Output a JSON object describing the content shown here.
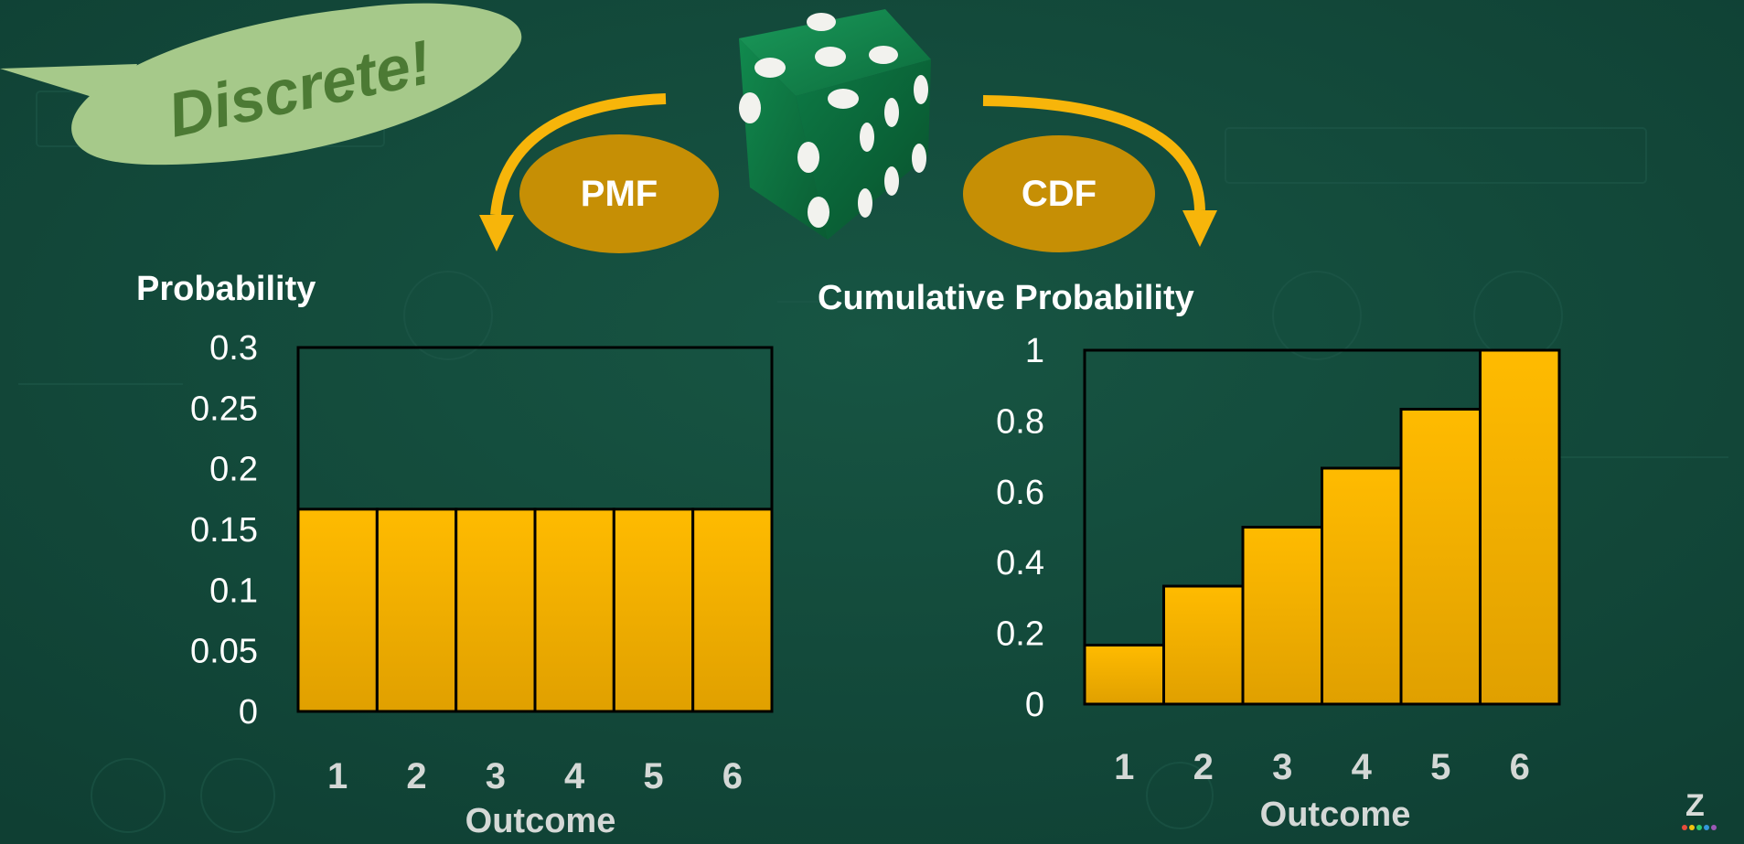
{
  "colors": {
    "background": "#134a3b",
    "bar_fill_top": "#ffbb00",
    "bar_fill_bottom": "#e0a000",
    "arrow": "#f7b50a",
    "pill": "#c68f05",
    "speech_bubble": "#a6c98a",
    "speech_text": "#4c7a34",
    "die": "#0e7a45",
    "tick_text": "#ffffff",
    "outcome_text": "#d4d8d6"
  },
  "speech_bubble": {
    "text": "Discrete!"
  },
  "pmf_pill": {
    "label": "PMF"
  },
  "cdf_pill": {
    "label": "CDF"
  },
  "icons": [
    "green-die-icon",
    "left-curved-arrow-icon",
    "right-curved-arrow-icon",
    "speech-bubble-icon",
    "z-logo-icon"
  ],
  "logo": {
    "text": "Z"
  },
  "chart_data": [
    {
      "type": "bar",
      "title": "Probability",
      "xlabel": "Outcome",
      "ylabel": "",
      "categories": [
        "1",
        "2",
        "3",
        "4",
        "5",
        "6"
      ],
      "values": [
        0.1667,
        0.1667,
        0.1667,
        0.1667,
        0.1667,
        0.1667
      ],
      "ylim": [
        0,
        0.3
      ],
      "yticks": [
        "0",
        "0.05",
        "0.1",
        "0.15",
        "0.2",
        "0.25",
        "0.3"
      ],
      "grid": false
    },
    {
      "type": "bar",
      "title": "Cumulative Probability",
      "xlabel": "Outcome",
      "ylabel": "",
      "categories": [
        "1",
        "2",
        "3",
        "4",
        "5",
        "6"
      ],
      "values": [
        0.1667,
        0.3333,
        0.5,
        0.6667,
        0.8333,
        1.0
      ],
      "ylim": [
        0,
        1
      ],
      "yticks": [
        "0",
        "0.2",
        "0.4",
        "0.6",
        "0.8",
        "1"
      ],
      "grid": false
    }
  ]
}
